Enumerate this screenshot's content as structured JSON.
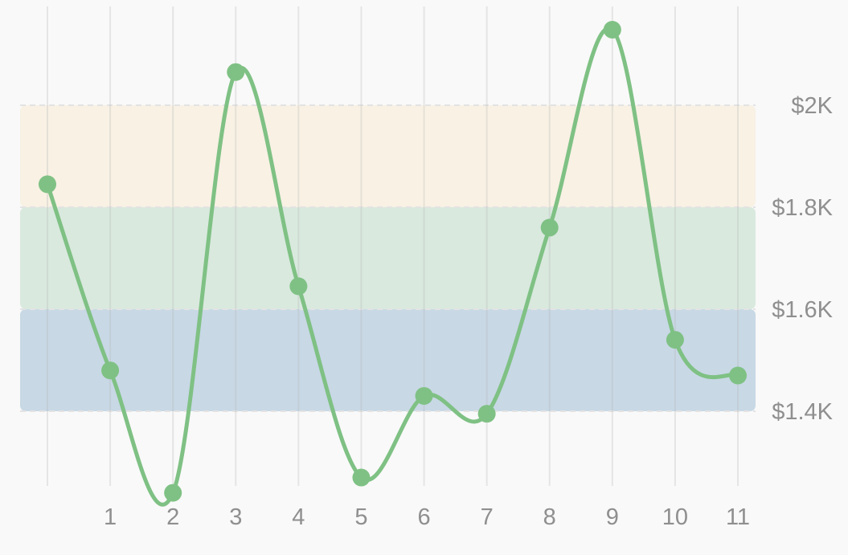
{
  "chart_data": {
    "type": "line",
    "title": "",
    "xlabel": "",
    "ylabel": "",
    "x": [
      0,
      1,
      2,
      3,
      4,
      5,
      6,
      7,
      8,
      9,
      10,
      11
    ],
    "x_tick_labels": [
      "",
      "1",
      "2",
      "3",
      "4",
      "5",
      "6",
      "7",
      "8",
      "9",
      "10",
      "11"
    ],
    "series": [
      {
        "values": [
          1845,
          1480,
          1240,
          2065,
          1645,
          1270,
          1430,
          1395,
          1760,
          2148,
          1540,
          1470
        ],
        "color": "#7fc184"
      }
    ],
    "y_tick_values": [
      1400,
      1600,
      1800,
      2000
    ],
    "y_tick_labels": [
      "$1.4K",
      "$1.6K",
      "$1.8K",
      "$2K"
    ],
    "ylim": [
      1250,
      2140
    ],
    "y_axis_position": "right",
    "grid": {
      "vertical": true,
      "horizontal": false
    },
    "bands": [
      {
        "from": 1400,
        "to": 1600,
        "color": "#c8d8e5"
      },
      {
        "from": 1600,
        "to": 1800,
        "color": "#d9e9de"
      },
      {
        "from": 1800,
        "to": 2000,
        "color": "#f8f1e4"
      }
    ]
  }
}
